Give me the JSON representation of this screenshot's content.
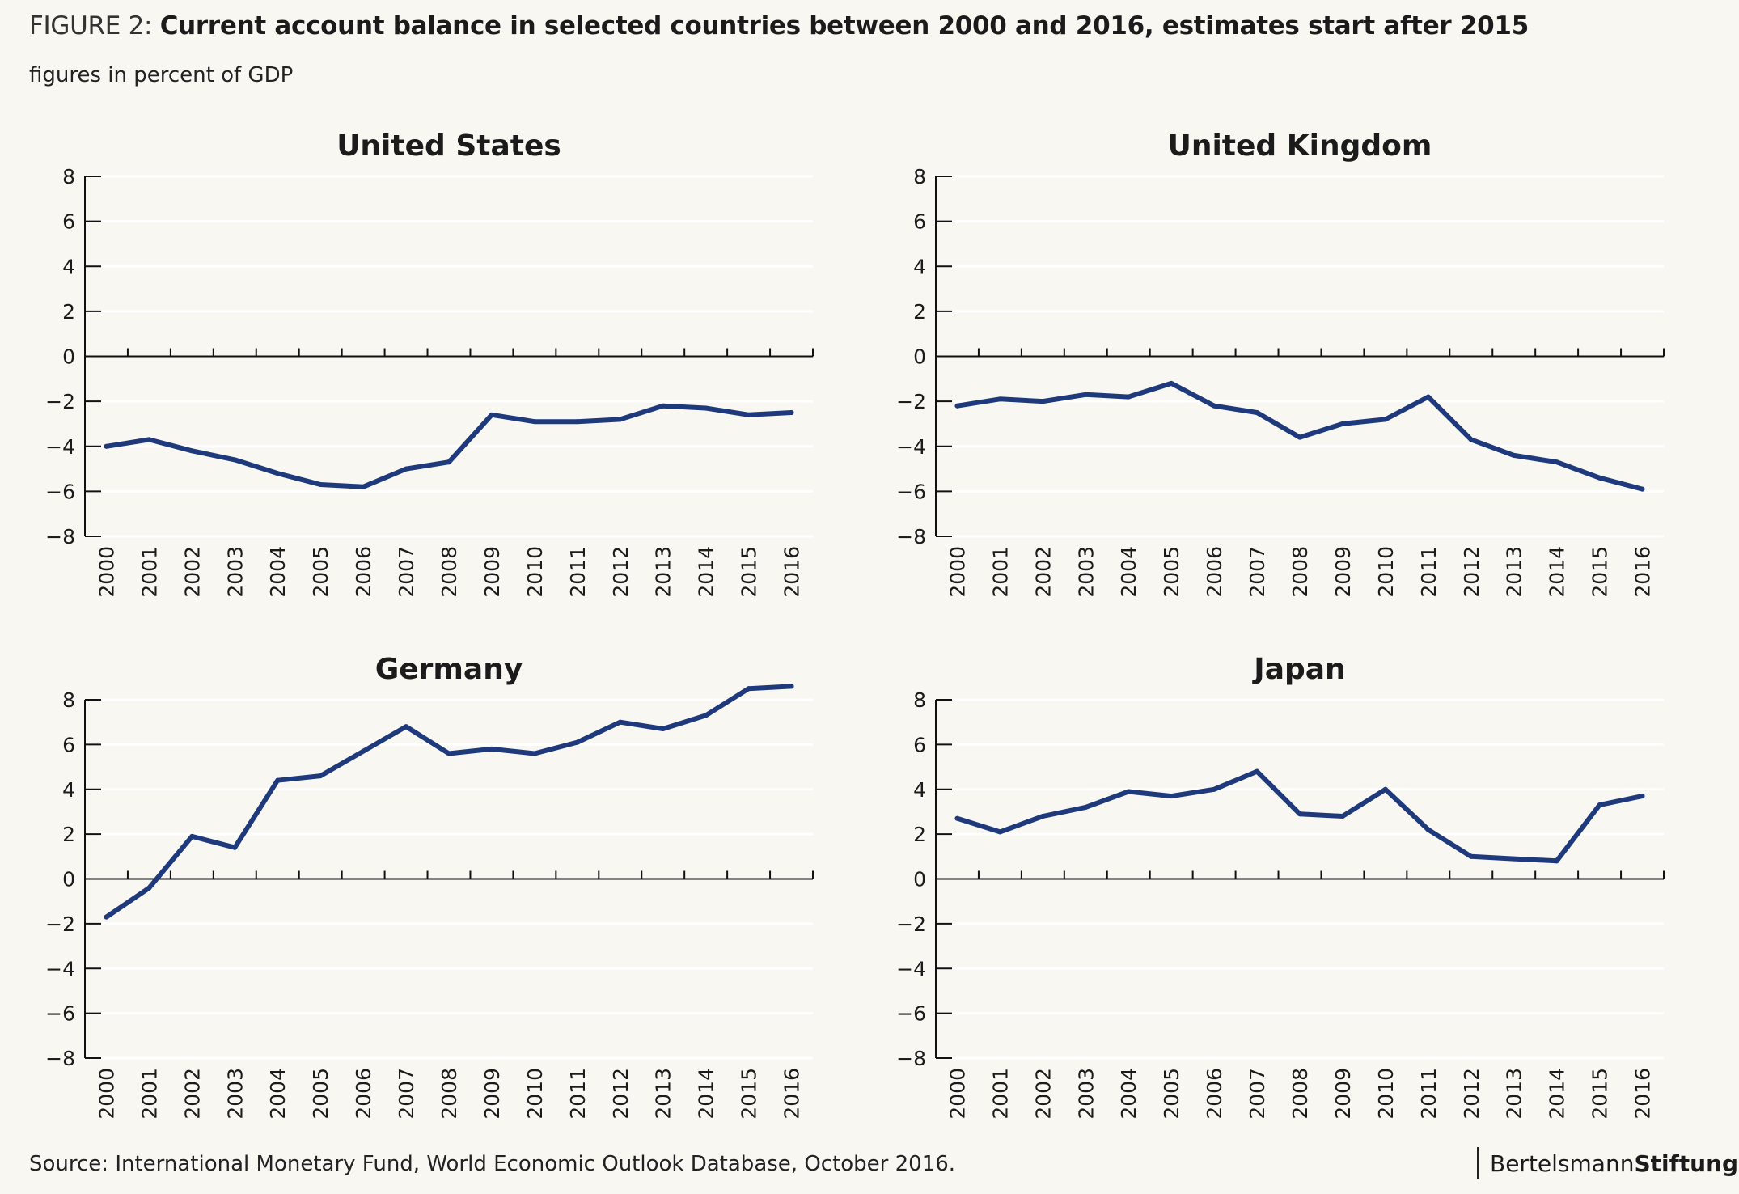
{
  "figure": {
    "label": "FIGURE 2:",
    "title": "Current account balance in selected countries between 2000 and 2016, estimates start after 2015",
    "subtitle": "figures in percent of GDP"
  },
  "source": "Source: International Monetary Fund, World Economic Outlook Database, October 2016.",
  "brand": {
    "part1": "Bertelsmann",
    "part2": "Stiftung"
  },
  "colors": {
    "line": "#1f3a7c",
    "axis": "#111111",
    "grid": "#ffffff",
    "background": "#f8f7f2"
  },
  "chart_data": [
    {
      "type": "line",
      "title": "United States",
      "categories": [
        "2000",
        "2001",
        "2002",
        "2003",
        "2004",
        "2005",
        "2006",
        "2007",
        "2008",
        "2009",
        "2010",
        "2011",
        "2012",
        "2013",
        "2014",
        "2015",
        "2016"
      ],
      "series": [
        {
          "name": "United States",
          "values": [
            -4.0,
            -3.7,
            -4.2,
            -4.6,
            -5.2,
            -5.7,
            -5.8,
            -5.0,
            -4.7,
            -2.6,
            -2.9,
            -2.9,
            -2.8,
            -2.2,
            -2.3,
            -2.6,
            -2.5
          ]
        }
      ],
      "yticks": [
        "8",
        "6",
        "4",
        "2",
        "0",
        "−2",
        "−4",
        "−6",
        "−8"
      ],
      "ytick_values": [
        8,
        6,
        4,
        2,
        0,
        -2,
        -4,
        -6,
        -8
      ],
      "ylim": [
        -8,
        8
      ],
      "grid": true
    },
    {
      "type": "line",
      "title": "United Kingdom",
      "categories": [
        "2000",
        "2001",
        "2002",
        "2003",
        "2004",
        "2005",
        "2006",
        "2007",
        "2008",
        "2009",
        "2010",
        "2011",
        "2012",
        "2013",
        "2014",
        "2015",
        "2016"
      ],
      "series": [
        {
          "name": "United Kingdom",
          "values": [
            -2.2,
            -1.9,
            -2.0,
            -1.7,
            -1.8,
            -1.2,
            -2.2,
            -2.5,
            -3.6,
            -3.0,
            -2.8,
            -1.8,
            -3.7,
            -4.4,
            -4.7,
            -5.4,
            -5.9
          ]
        }
      ],
      "yticks": [
        "8",
        "6",
        "4",
        "2",
        "0",
        "−2",
        "−4",
        "−6",
        "−8"
      ],
      "ytick_values": [
        8,
        6,
        4,
        2,
        0,
        -2,
        -4,
        -6,
        -8
      ],
      "ylim": [
        -8,
        8
      ],
      "grid": true
    },
    {
      "type": "line",
      "title": "Germany",
      "categories": [
        "2000",
        "2001",
        "2002",
        "2003",
        "2004",
        "2005",
        "2006",
        "2007",
        "2008",
        "2009",
        "2010",
        "2011",
        "2012",
        "2013",
        "2014",
        "2015",
        "2016"
      ],
      "series": [
        {
          "name": "Germany",
          "values": [
            -1.7,
            -0.4,
            1.9,
            1.4,
            4.4,
            4.6,
            5.7,
            6.8,
            5.6,
            5.8,
            5.6,
            6.1,
            7.0,
            6.7,
            7.3,
            8.5,
            8.6
          ]
        }
      ],
      "yticks": [
        "8",
        "6",
        "4",
        "2",
        "0",
        "−2",
        "−4",
        "−6",
        "−8"
      ],
      "ytick_values": [
        8,
        6,
        4,
        2,
        0,
        -2,
        -4,
        -6,
        -8
      ],
      "ylim": [
        -8,
        8
      ],
      "grid": true
    },
    {
      "type": "line",
      "title": "Japan",
      "categories": [
        "2000",
        "2001",
        "2002",
        "2003",
        "2004",
        "2005",
        "2006",
        "2007",
        "2008",
        "2009",
        "2010",
        "2011",
        "2012",
        "2013",
        "2014",
        "2015",
        "2016"
      ],
      "series": [
        {
          "name": "Japan",
          "values": [
            2.7,
            2.1,
            2.8,
            3.2,
            3.9,
            3.7,
            4.0,
            4.8,
            2.9,
            2.8,
            4.0,
            2.2,
            1.0,
            0.9,
            0.8,
            3.3,
            3.7
          ]
        }
      ],
      "yticks": [
        "8",
        "6",
        "4",
        "2",
        "0",
        "−2",
        "−4",
        "−6",
        "−8"
      ],
      "ytick_values": [
        8,
        6,
        4,
        2,
        0,
        -2,
        -4,
        -6,
        -8
      ],
      "ylim": [
        -8,
        8
      ],
      "grid": true
    }
  ]
}
